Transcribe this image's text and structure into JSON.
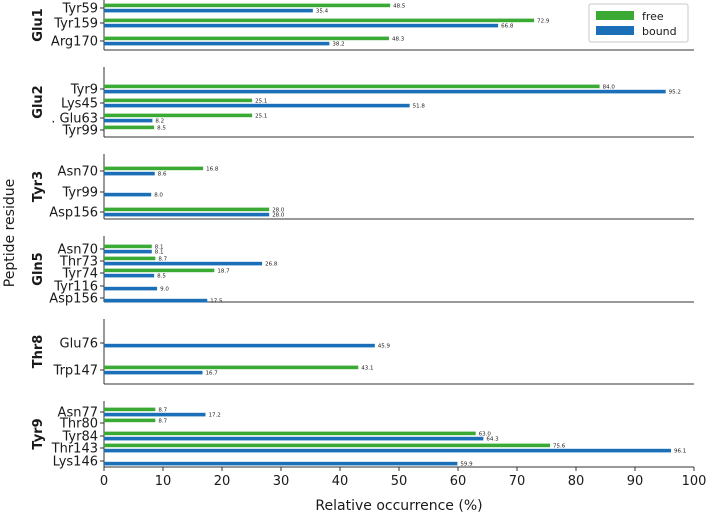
{
  "chart_data": {
    "type": "bar",
    "orientation": "horizontal",
    "xlabel": "Relative occurrence (%)",
    "ylabel": "Peptide residue",
    "xlim": [
      0,
      100
    ],
    "xticks": [
      "0",
      "10",
      "20",
      "30",
      "40",
      "50",
      "60",
      "70",
      "80",
      "90",
      "100"
    ],
    "grid": false,
    "legend_position": "top-right",
    "series": [
      {
        "name": "free",
        "color": "#3aaa35"
      },
      {
        "name": "bound",
        "color": "#1a6fb8"
      }
    ],
    "groups": [
      {
        "name": "Glu1",
        "residues": [
          {
            "label": "Tyr59",
            "free": 48.5,
            "bound": 35.4
          },
          {
            "label": "Tyr159",
            "free": 72.9,
            "bound": 66.8
          },
          {
            "label": "Arg170",
            "free": 48.3,
            "bound": 38.2
          }
        ]
      },
      {
        "name": "Glu2",
        "residues": [
          {
            "label": "Tyr9",
            "free": 84.0,
            "bound": 95.2
          },
          {
            "label": "Lys45",
            "free": 25.1,
            "bound": 51.8
          },
          {
            "label": ". Glu63",
            "free": 25.1,
            "bound": 8.2
          },
          {
            "label": "Tyr99",
            "free": 8.5,
            "bound": null
          }
        ]
      },
      {
        "name": "Tyr3",
        "residues": [
          {
            "label": "Asn70",
            "free": 16.8,
            "bound": 8.6
          },
          {
            "label": "Tyr99",
            "free": null,
            "bound": 8.0
          },
          {
            "label": "Asp156",
            "free": 28.0,
            "bound": 28.0
          }
        ]
      },
      {
        "name": "Gln5",
        "residues": [
          {
            "label": "Asn70",
            "free": 8.1,
            "bound": 8.1
          },
          {
            "label": "Thr73",
            "free": 8.7,
            "bound": 26.8
          },
          {
            "label": "Tyr74",
            "free": 18.7,
            "bound": 8.5
          },
          {
            "label": "Tyr116",
            "free": null,
            "bound": 9.0
          },
          {
            "label": "Asp156",
            "free": null,
            "bound": 17.5
          }
        ]
      },
      {
        "name": "Thr8",
        "residues": [
          {
            "label": "Glu76",
            "free": null,
            "bound": 45.9
          },
          {
            "label": "Trp147",
            "free": 43.1,
            "bound": 16.7
          }
        ]
      },
      {
        "name": "Tyr9",
        "residues": [
          {
            "label": "Asn77",
            "free": 8.7,
            "bound": 17.2
          },
          {
            "label": "Thr80",
            "free": 8.7,
            "bound": null
          },
          {
            "label": "Tyr84",
            "free": 63.0,
            "bound": 64.3
          },
          {
            "label": "Thr143",
            "free": 75.6,
            "bound": 96.1
          },
          {
            "label": "Lys146",
            "free": null,
            "bound": 59.9
          }
        ]
      }
    ]
  }
}
